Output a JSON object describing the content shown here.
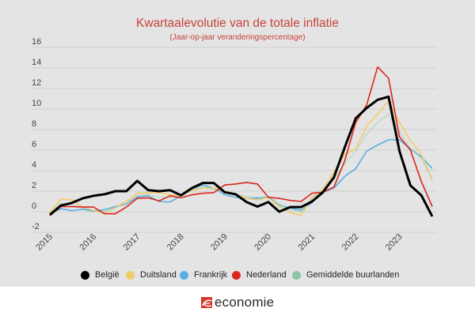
{
  "chart_data": {
    "type": "line",
    "title": "Kwartaalevolutie van de totale inflatie",
    "subtitle": "(Jaar-op-jaar veranderingspercentage)",
    "xlabel": "",
    "ylabel": "",
    "ylim": [
      -2,
      16
    ],
    "yticks": [
      16,
      14,
      12,
      10,
      8,
      6,
      4,
      2,
      0,
      -2
    ],
    "ytick_labels": [
      "16",
      "14",
      "12",
      "10",
      "8",
      "6",
      "4",
      "2",
      "0",
      "-2"
    ],
    "x_tick_labels": [
      "2015",
      "2016",
      "2017",
      "2018",
      "2019",
      "2020",
      "2021",
      "2022",
      "2023"
    ],
    "x_start_year": 2015,
    "points_per_year": 4,
    "grid": true,
    "legend_position": "bottom",
    "series": [
      {
        "name": "België",
        "color": "#000000",
        "style": "solid-thick",
        "values": [
          -0.3,
          0.6,
          0.85,
          1.3,
          1.55,
          1.7,
          2.0,
          2.0,
          3.0,
          2.1,
          2.0,
          2.1,
          1.6,
          2.3,
          2.8,
          2.8,
          1.9,
          1.7,
          0.95,
          0.5,
          0.95,
          0.0,
          0.45,
          0.45,
          1.0,
          1.9,
          3.35,
          6.3,
          9.1,
          10.1,
          10.9,
          11.2,
          5.9,
          2.55,
          1.6,
          -0.45
        ]
      },
      {
        "name": "Duitsland",
        "color": "#f2cc6b",
        "style": "solid",
        "values": [
          -0.1,
          1.25,
          1.15,
          0.45,
          0.1,
          -0.1,
          0.4,
          1.0,
          1.8,
          1.85,
          1.85,
          1.65,
          1.55,
          2.05,
          2.3,
          2.3,
          2.0,
          1.7,
          1.3,
          1.15,
          1.4,
          0.5,
          -0.1,
          -0.35,
          1.4,
          2.2,
          3.85,
          5.6,
          6.1,
          8.35,
          9.5,
          10.8,
          8.7,
          6.9,
          5.6,
          3.1
        ]
      },
      {
        "name": "Frankrijk",
        "color": "#5ab0e2",
        "style": "solid",
        "values": [
          -0.2,
          0.3,
          0.1,
          0.25,
          0.05,
          0.2,
          0.5,
          0.75,
          1.45,
          1.55,
          1.0,
          0.95,
          1.55,
          2.25,
          2.6,
          2.3,
          1.65,
          1.4,
          1.3,
          1.3,
          1.45,
          0.65,
          0.35,
          0.15,
          0.9,
          1.9,
          2.3,
          3.45,
          4.2,
          5.9,
          6.5,
          7.0,
          7.0,
          6.1,
          5.35,
          4.2
        ]
      },
      {
        "name": "Nederland",
        "color": "#d9261c",
        "style": "solid",
        "values": [
          -0.4,
          0.5,
          0.5,
          0.45,
          0.45,
          -0.2,
          -0.2,
          0.45,
          1.3,
          1.35,
          1.05,
          1.55,
          1.35,
          1.65,
          1.8,
          1.85,
          2.6,
          2.7,
          2.85,
          2.7,
          1.4,
          1.3,
          1.1,
          1.0,
          1.8,
          1.9,
          2.4,
          5.0,
          8.7,
          10.4,
          14.1,
          13.0,
          7.3,
          6.0,
          2.95,
          0.5
        ]
      },
      {
        "name": "Gemiddelde buurlanden",
        "color": "#8fc4a6",
        "style": "dotted",
        "values": [
          -0.2,
          0.8,
          0.7,
          0.4,
          0.1,
          0.0,
          0.4,
          0.8,
          1.6,
          1.7,
          1.4,
          1.4,
          1.5,
          2.1,
          2.4,
          2.2,
          1.9,
          1.7,
          1.5,
          1.4,
          1.4,
          0.7,
          0.2,
          0.0,
          1.3,
          2.1,
          3.1,
          4.7,
          5.9,
          7.6,
          8.7,
          9.5,
          7.8,
          6.2,
          5.2,
          3.2
        ]
      }
    ]
  },
  "footer": {
    "brand": "economie"
  }
}
